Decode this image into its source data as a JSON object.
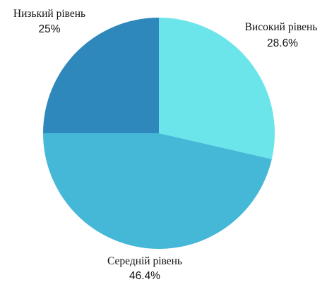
{
  "chart_data": {
    "type": "pie",
    "title": "",
    "slices": [
      {
        "label": "Високий рівень",
        "value": 28.6,
        "value_text": "28.6%",
        "color": "#6be4ea"
      },
      {
        "label": "Середній рівень",
        "value": 46.4,
        "value_text": "46.4%",
        "color": "#45b8d8"
      },
      {
        "label": "Низький рівень",
        "value": 25,
        "value_text": "25%",
        "color": "#2e88bb"
      }
    ],
    "start_angle": "12 o'clock",
    "direction": "clockwise",
    "legend": "none",
    "labels_outside": true
  }
}
